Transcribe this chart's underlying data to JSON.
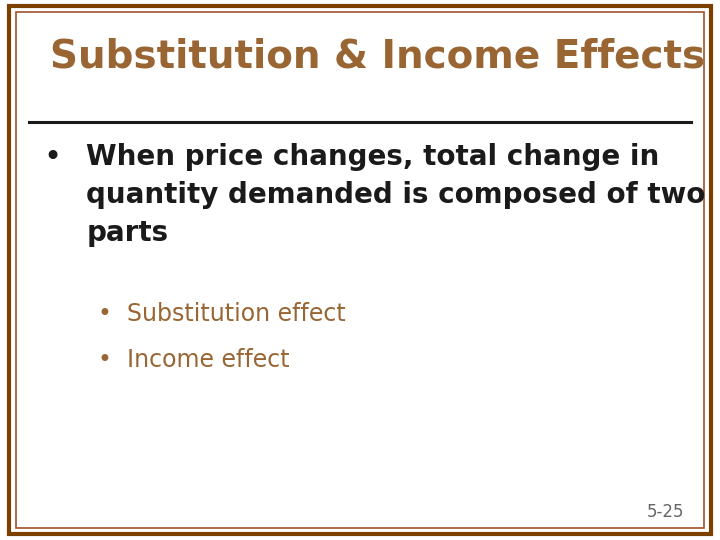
{
  "title": "Substitution & Income Effects",
  "title_color": "#996633",
  "title_fontsize": 28,
  "background_color": "#FFFFFF",
  "border_color_outer": "#7B3F00",
  "border_color_inner": "#A0522D",
  "line_color": "#1a1a1a",
  "bullet1_text": "When price changes, total change in\nquantity demanded is composed of two\nparts",
  "bullet1_color": "#1a1a1a",
  "bullet1_fontsize": 20,
  "sub_bullet1": "Substitution effect",
  "sub_bullet2": "Income effect",
  "sub_bullet_color": "#996633",
  "sub_bullet_fontsize": 17,
  "page_number": "5-25",
  "page_number_color": "#666666",
  "page_number_fontsize": 12
}
